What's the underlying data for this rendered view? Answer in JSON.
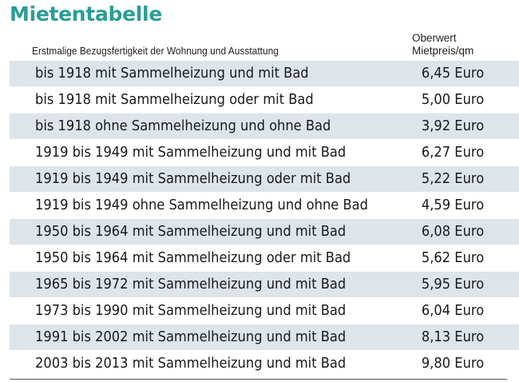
{
  "title": "Mietentabelle",
  "header": {
    "left": "Erstmalige Bezugsfertigkeit der Wohnung und Ausstattung",
    "right_line1": "Oberwert",
    "right_line2": "Mietpreis/qm"
  },
  "rows": [
    {
      "desc": "bis 1918 mit Sammelheizung und mit Bad",
      "price": "6,45 Euro"
    },
    {
      "desc": "bis 1918 mit Sammelheizung oder mit Bad",
      "price": "5,00 Euro"
    },
    {
      "desc": "bis 1918 ohne Sammelheizung und ohne Bad",
      "price": "3,92 Euro"
    },
    {
      "desc": "1919 bis 1949 mit Sammelheizung und mit Bad",
      "price": "6,27 Euro"
    },
    {
      "desc": "1919 bis 1949 mit Sammelheizung oder mit Bad",
      "price": "5,22 Euro"
    },
    {
      "desc": "1919 bis 1949 ohne Sammelheizung und ohne Bad",
      "price": "4,59 Euro"
    },
    {
      "desc": "1950 bis 1964 mit Sammelheizung und mit Bad",
      "price": "6,08 Euro"
    },
    {
      "desc": "1950 bis 1964 mit Sammelheizung oder mit Bad",
      "price": "5,62 Euro"
    },
    {
      "desc": "1965 bis 1972 mit Sammelheizung und mit Bad",
      "price": "5,95 Euro"
    },
    {
      "desc": "1973 bis 1990 mit Sammelheizung und mit Bad",
      "price": "6,04 Euro"
    },
    {
      "desc": "1991 bis 2002 mit Sammelheizung und mit Bad",
      "price": "8,13 Euro"
    },
    {
      "desc": "2003 bis 2013 mit Sammelheizung und mit Bad",
      "price": "9,80 Euro"
    }
  ],
  "colors": {
    "title": "#2a9d96",
    "stripe": "#dde4ea"
  }
}
